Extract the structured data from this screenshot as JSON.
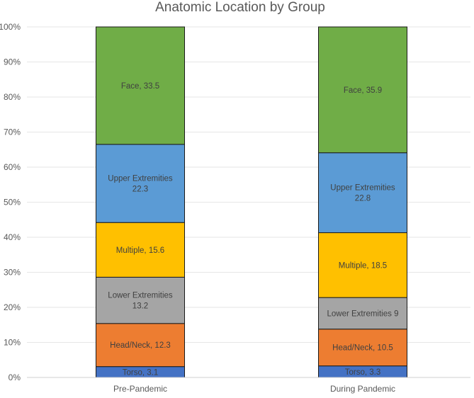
{
  "chart_data": {
    "type": "bar",
    "stacked": true,
    "normalized": true,
    "title": "Anatomic Location by Group",
    "xlabel": "",
    "ylabel": "",
    "ylim": [
      0,
      100
    ],
    "y_ticks": [
      "0%",
      "10%",
      "20%",
      "30%",
      "40%",
      "50%",
      "60%",
      "70%",
      "80%",
      "90%",
      "100%"
    ],
    "grid": true,
    "categories": [
      "Pre-Pandemic",
      "During Pandemic"
    ],
    "series": [
      {
        "name": "Torso",
        "color": "#4472c4",
        "values": [
          3.1,
          3.3
        ],
        "labels": [
          [
            "Torso, 3.1"
          ],
          [
            "Torso, 3.3"
          ]
        ]
      },
      {
        "name": "Head/Neck",
        "color": "#ed7d31",
        "values": [
          12.3,
          10.5
        ],
        "labels": [
          [
            "Head/Neck, 12.3"
          ],
          [
            "Head/Neck, 10.5"
          ]
        ]
      },
      {
        "name": "Lower Extremities",
        "color": "#a5a5a5",
        "values": [
          13.2,
          9
        ],
        "labels": [
          [
            "Lower Extremities",
            "13.2"
          ],
          [
            "Lower Extremities 9"
          ]
        ]
      },
      {
        "name": "Multiple",
        "color": "#ffc000",
        "values": [
          15.6,
          18.5
        ],
        "labels": [
          [
            "Multiple, 15.6"
          ],
          [
            "Multiple, 18.5"
          ]
        ]
      },
      {
        "name": "Upper Extremities",
        "color": "#5b9bd5",
        "values": [
          22.3,
          22.8
        ],
        "labels": [
          [
            "Upper Extremities",
            "22.3"
          ],
          [
            "Upper Extremities",
            "22.8"
          ]
        ]
      },
      {
        "name": "Face",
        "color": "#70ad47",
        "values": [
          33.5,
          35.9
        ],
        "labels": [
          [
            "Face, 33.5"
          ],
          [
            "Face, 35.9"
          ]
        ]
      }
    ]
  }
}
